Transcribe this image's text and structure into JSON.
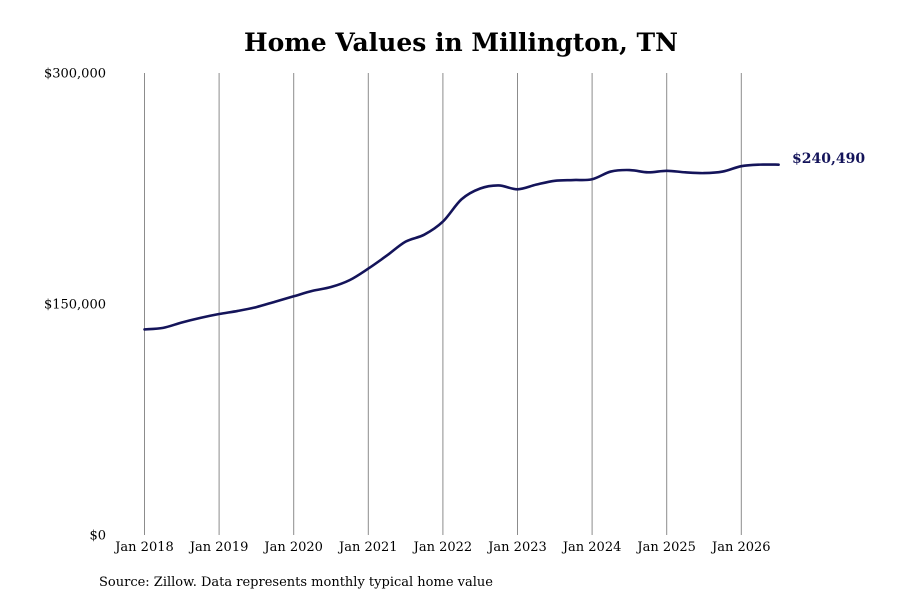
{
  "chart_data": {
    "type": "line",
    "title": "Home Values in Millington, TN",
    "xlabel": "",
    "ylabel": "",
    "ylim": [
      0,
      300000
    ],
    "yticks": [
      {
        "value": 0,
        "label": "$0"
      },
      {
        "value": 150000,
        "label": "$150,000"
      },
      {
        "value": 300000,
        "label": "$300,000"
      }
    ],
    "xticks": [
      {
        "value": "2018-01",
        "label": "Jan 2018"
      },
      {
        "value": "2019-01",
        "label": "Jan 2019"
      },
      {
        "value": "2020-01",
        "label": "Jan 2020"
      },
      {
        "value": "2021-01",
        "label": "Jan 2021"
      },
      {
        "value": "2022-01",
        "label": "Jan 2022"
      },
      {
        "value": "2023-01",
        "label": "Jan 2023"
      },
      {
        "value": "2024-01",
        "label": "Jan 2024"
      },
      {
        "value": "2025-01",
        "label": "Jan 2025"
      },
      {
        "value": "2026-01",
        "label": "Jan 2026"
      }
    ],
    "grid": "vertical",
    "line_color": "#14145a",
    "end_label": "$240,490",
    "series": [
      {
        "x": [
          "2018-01",
          "2018-04",
          "2018-07",
          "2018-10",
          "2019-01",
          "2019-04",
          "2019-07",
          "2019-10",
          "2020-01",
          "2020-04",
          "2020-07",
          "2020-10",
          "2021-01",
          "2021-04",
          "2021-07",
          "2021-10",
          "2022-01",
          "2022-04",
          "2022-07",
          "2022-10",
          "2023-01",
          "2023-04",
          "2023-07",
          "2023-10",
          "2024-01",
          "2024-04",
          "2024-07",
          "2024-10",
          "2025-01",
          "2025-04",
          "2025-07",
          "2025-10",
          "2026-01",
          "2026-04",
          "2026-07"
        ],
        "values": [
          133500,
          134500,
          138000,
          141000,
          143500,
          145500,
          148000,
          151500,
          155000,
          158500,
          161000,
          165500,
          173000,
          181500,
          190500,
          195000,
          203500,
          218000,
          225000,
          227000,
          224500,
          227500,
          230000,
          230500,
          231000,
          236000,
          237000,
          235500,
          236500,
          235500,
          235000,
          236000,
          239500,
          240500,
          240490
        ]
      }
    ]
  },
  "source_note": "Source: Zillow. Data represents monthly typical home value"
}
